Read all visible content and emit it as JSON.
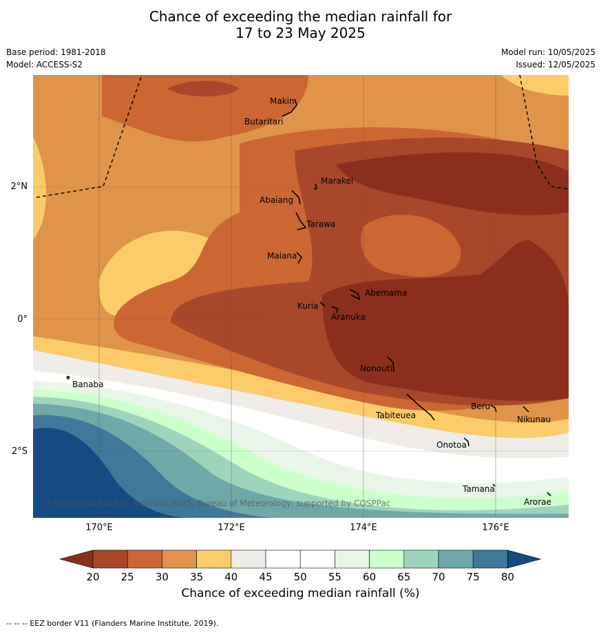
{
  "title_line1": "Chance of exceeding the median rainfall for",
  "title_line2": "17 to 23 May 2025",
  "base_period": "Base period: 1981-2018",
  "model": "Model: ACCESS-S2",
  "model_run": "Model run: 10/05/2025",
  "issued": "Issued: 12/05/2025",
  "lat_labels": [
    "2°N",
    "0°",
    "2°S"
  ],
  "lon_labels": [
    "170°E",
    "172°E",
    "174°E",
    "176°E"
  ],
  "places": [
    "Makin",
    "Butaritari",
    "Marakei",
    "Abaiang",
    "Tarawa",
    "Maiana",
    "Abemama",
    "Kuria",
    "Aranuka",
    "Nonouti",
    "Banaba",
    "Beru",
    "Tabiteuea",
    "Nikunau",
    "Onotoa",
    "Tamana",
    "Arorae"
  ],
  "copyright": "© Commonwealth of Australia 2025, Bureau of Meteorology, supported by COSPPac",
  "colorbar": {
    "ticks": [
      "20",
      "25",
      "30",
      "35",
      "40",
      "45",
      "50",
      "55",
      "60",
      "65",
      "70",
      "75",
      "80"
    ],
    "label": "Chance of exceeding median rainfall (%)",
    "colors": [
      "#a9472a",
      "#cc6633",
      "#e0944a",
      "#fccc6b",
      "#f0ede8",
      "#ffffff",
      "#ffffff",
      "#eaf5ea",
      "#ccffcc",
      "#9fd4bc",
      "#6fa8a8",
      "#3f789a"
    ],
    "under_color": "#8b2e1e",
    "over_color": "#164a82"
  },
  "footer": "-- -- -- EEZ border V11 (Flanders Marine Institute, 2019)."
}
